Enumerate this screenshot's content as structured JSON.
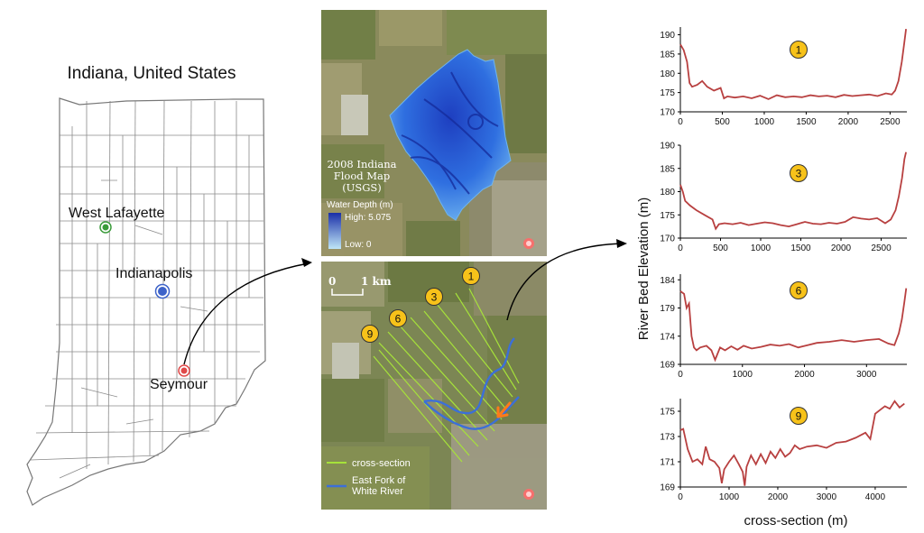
{
  "indiana_map": {
    "title": "Indiana, United States",
    "cities": [
      {
        "name": "West Lafayette",
        "color": "#3a9b3a"
      },
      {
        "name": "Indianapolis",
        "color": "#3d63c9"
      },
      {
        "name": "Seymour",
        "color": "#e04a4a"
      }
    ]
  },
  "flood_map": {
    "title_lines": [
      "2008 Indiana",
      "Flood Map",
      "(USGS)"
    ],
    "legend_title": "Water Depth (m)",
    "high_label": "High: 5.075",
    "low_label": "Low: 0",
    "colors": {
      "deep": "#1a2fa8",
      "shallow": "#bfe6f7"
    }
  },
  "cross_section_map": {
    "scale_start": "0",
    "scale_end": "1 km",
    "badges": [
      "1",
      "3",
      "6",
      "9"
    ],
    "legend": [
      {
        "label": "cross-section",
        "color": "#a6e23a"
      },
      {
        "label": "East Fork of\nWhite River",
        "color": "#3c6fd8"
      }
    ]
  },
  "profiles": {
    "ylabel": "River Bed Elevation (m)",
    "xlabel": "cross-section (m)",
    "line_color": "#b84040",
    "badge_color": "#f7c21a"
  },
  "chart_data": [
    {
      "type": "line",
      "label": "1",
      "xlim": [
        0,
        2700
      ],
      "ylim": [
        170,
        192
      ],
      "xticks": [
        0,
        500,
        1000,
        1500,
        2000,
        2500
      ],
      "yticks": [
        170,
        175,
        180,
        185,
        190
      ],
      "x": [
        0,
        40,
        80,
        110,
        140,
        200,
        260,
        320,
        400,
        480,
        520,
        560,
        650,
        750,
        850,
        950,
        1050,
        1150,
        1250,
        1350,
        1450,
        1550,
        1650,
        1750,
        1850,
        1950,
        2050,
        2150,
        2250,
        2350,
        2450,
        2520,
        2560,
        2600,
        2640,
        2670,
        2690
      ],
      "y": [
        187.5,
        186,
        183,
        177.5,
        176.5,
        177,
        178,
        176.5,
        175.5,
        176.2,
        173.5,
        174,
        173.7,
        174,
        173.5,
        174.2,
        173.3,
        174.3,
        173.8,
        174,
        173.8,
        174.3,
        174,
        174.2,
        173.8,
        174.4,
        174.1,
        174.3,
        174.5,
        174.1,
        174.8,
        174.5,
        175.5,
        178,
        183,
        188,
        191.5
      ]
    },
    {
      "type": "line",
      "label": "3",
      "xlim": [
        0,
        2820
      ],
      "ylim": [
        170,
        190
      ],
      "xticks": [
        0,
        500,
        1000,
        1500,
        2000,
        2500
      ],
      "yticks": [
        170,
        175,
        180,
        185,
        190
      ],
      "x": [
        0,
        30,
        60,
        120,
        200,
        300,
        400,
        440,
        480,
        550,
        650,
        750,
        850,
        950,
        1050,
        1150,
        1250,
        1350,
        1450,
        1550,
        1650,
        1750,
        1850,
        1950,
        2050,
        2150,
        2250,
        2350,
        2450,
        2550,
        2620,
        2680,
        2720,
        2760,
        2790,
        2810
      ],
      "y": [
        181.5,
        180,
        178,
        177,
        176,
        175,
        174,
        172,
        173,
        173.2,
        173,
        173.3,
        172.8,
        173.1,
        173.4,
        173.2,
        172.8,
        172.5,
        173,
        173.5,
        173.1,
        173,
        173.3,
        173.1,
        173.5,
        174.5,
        174.2,
        174,
        174.3,
        173.2,
        174,
        176,
        179,
        183,
        187,
        188.5
      ]
    },
    {
      "type": "line",
      "label": "6",
      "xlim": [
        0,
        3650
      ],
      "ylim": [
        169,
        185
      ],
      "xticks": [
        0,
        1000,
        2000,
        3000
      ],
      "yticks": [
        169,
        174,
        179,
        184
      ],
      "x": [
        0,
        60,
        100,
        140,
        180,
        220,
        260,
        320,
        420,
        500,
        560,
        640,
        720,
        820,
        920,
        1020,
        1150,
        1300,
        1450,
        1600,
        1750,
        1900,
        2050,
        2200,
        2400,
        2600,
        2800,
        3000,
        3200,
        3350,
        3450,
        3520,
        3570,
        3610,
        3640
      ],
      "y": [
        182,
        181.5,
        179,
        179.8,
        174,
        172,
        171.5,
        172,
        172.3,
        171.5,
        169.8,
        172,
        171.5,
        172.2,
        171.6,
        172.3,
        171.8,
        172.1,
        172.5,
        172.3,
        172.6,
        172,
        172.4,
        172.8,
        173,
        173.3,
        173,
        173.3,
        173.5,
        172.7,
        172.4,
        174.5,
        177,
        180,
        182.5
      ]
    },
    {
      "type": "line",
      "label": "9",
      "xlim": [
        0,
        4650
      ],
      "ylim": [
        169,
        176
      ],
      "xticks": [
        0,
        1000,
        2000,
        3000,
        4000
      ],
      "yticks": [
        169,
        171,
        173,
        175
      ],
      "x": [
        0,
        60,
        150,
        250,
        350,
        450,
        520,
        600,
        700,
        800,
        850,
        900,
        1000,
        1100,
        1200,
        1280,
        1320,
        1360,
        1450,
        1550,
        1650,
        1750,
        1850,
        1950,
        2050,
        2150,
        2250,
        2350,
        2450,
        2600,
        2800,
        3000,
        3200,
        3400,
        3600,
        3800,
        3900,
        3950,
        4000,
        4100,
        4200,
        4300,
        4400,
        4500,
        4600
      ],
      "y": [
        173.5,
        173.6,
        172,
        171,
        171.2,
        170.8,
        172.2,
        171.2,
        171,
        170.5,
        169.3,
        170.4,
        171,
        171.5,
        170.8,
        170.2,
        169.1,
        170.6,
        171.5,
        170.8,
        171.6,
        170.9,
        171.8,
        171.3,
        172,
        171.4,
        171.7,
        172.3,
        172,
        172.2,
        172.3,
        172.1,
        172.5,
        172.6,
        172.9,
        173.3,
        172.8,
        173.8,
        174.8,
        175.1,
        175.4,
        175.2,
        175.8,
        175.3,
        175.6
      ]
    }
  ]
}
